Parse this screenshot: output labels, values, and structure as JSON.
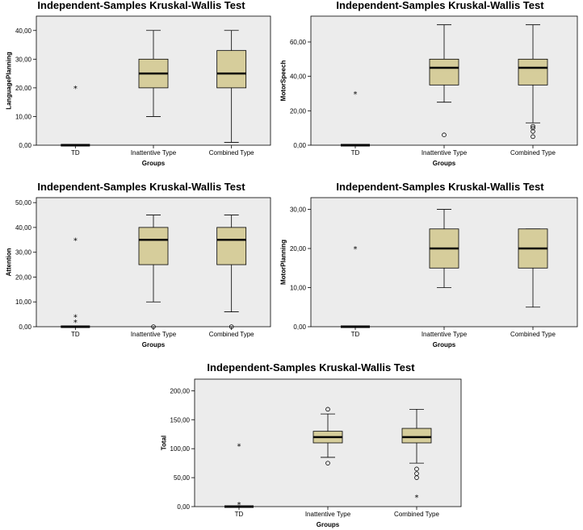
{
  "chart_data": [
    {
      "type": "boxplot",
      "title": "Independent-Samples Kruskal-Wallis Test",
      "xlabel": "Groups",
      "ylabel": "LanguagePlanning",
      "ylim": [
        0,
        45
      ],
      "yticks": [
        0,
        10,
        20,
        30,
        40
      ],
      "ytick_labels": [
        "0,00",
        "10,00",
        "20,00",
        "30,00",
        "40,00"
      ],
      "grid": false,
      "box_color": "#d6cd9b",
      "background": "#ececec",
      "categories": [
        "TD",
        "Inattentive Type",
        "Combined Type"
      ],
      "boxes": [
        {
          "min": 0,
          "q1": 0,
          "median": 0,
          "q3": 0,
          "max": 0,
          "outliers": [],
          "extremes": [
            20
          ]
        },
        {
          "min": 10,
          "q1": 20,
          "median": 25,
          "q3": 30,
          "max": 40,
          "outliers": [],
          "extremes": []
        },
        {
          "min": 1,
          "q1": 20,
          "median": 25,
          "q3": 33,
          "max": 40,
          "outliers": [],
          "extremes": []
        }
      ]
    },
    {
      "type": "boxplot",
      "title": "Independent-Samples Kruskal-Wallis Test",
      "xlabel": "Groups",
      "ylabel": "MotorSpeech",
      "ylim": [
        0,
        75
      ],
      "yticks": [
        0,
        20,
        40,
        60
      ],
      "ytick_labels": [
        "0,00",
        "20,00",
        "40,00",
        "60,00"
      ],
      "grid": false,
      "box_color": "#d6cd9b",
      "background": "#ececec",
      "categories": [
        "TD",
        "Inattentive Type",
        "Combined Type"
      ],
      "boxes": [
        {
          "min": 0,
          "q1": 0,
          "median": 0,
          "q3": 0,
          "max": 0,
          "outliers": [],
          "extremes": [
            30
          ]
        },
        {
          "min": 25,
          "q1": 35,
          "median": 45,
          "q3": 50,
          "max": 70,
          "outliers": [
            6
          ],
          "extremes": []
        },
        {
          "min": 13,
          "q1": 35,
          "median": 45,
          "q3": 50,
          "max": 70,
          "outliers": [
            11,
            10,
            8,
            5
          ],
          "extremes": []
        }
      ]
    },
    {
      "type": "boxplot",
      "title": "Independent-Samples Kruskal-Wallis Test",
      "xlabel": "Groups",
      "ylabel": "Attention",
      "ylim": [
        0,
        52
      ],
      "yticks": [
        0,
        10,
        20,
        30,
        40,
        50
      ],
      "ytick_labels": [
        "0,00",
        "10,00",
        "20,00",
        "30,00",
        "40,00",
        "50,00"
      ],
      "grid": false,
      "box_color": "#d6cd9b",
      "background": "#ececec",
      "categories": [
        "TD",
        "Inattentive Type",
        "Combined Type"
      ],
      "boxes": [
        {
          "min": 0,
          "q1": 0,
          "median": 0,
          "q3": 0,
          "max": 0,
          "outliers": [],
          "extremes": [
            35,
            4,
            2
          ]
        },
        {
          "min": 10,
          "q1": 25,
          "median": 35,
          "q3": 40,
          "max": 45,
          "outliers": [
            0
          ],
          "extremes": []
        },
        {
          "min": 6,
          "q1": 25,
          "median": 35,
          "q3": 40,
          "max": 45,
          "outliers": [
            0
          ],
          "extremes": []
        }
      ]
    },
    {
      "type": "boxplot",
      "title": "Independent-Samples Kruskal-Wallis Test",
      "xlabel": "Groups",
      "ylabel": "MotorPlanning",
      "ylim": [
        0,
        33
      ],
      "yticks": [
        0,
        10,
        20,
        30
      ],
      "ytick_labels": [
        "0,00",
        "10,00",
        "20,00",
        "30,00"
      ],
      "grid": false,
      "box_color": "#d6cd9b",
      "background": "#ececec",
      "categories": [
        "TD",
        "Inattentive Type",
        "Combined Type"
      ],
      "boxes": [
        {
          "min": 0,
          "q1": 0,
          "median": 0,
          "q3": 0,
          "max": 0,
          "outliers": [],
          "extremes": [
            20
          ]
        },
        {
          "min": 10,
          "q1": 15,
          "median": 20,
          "q3": 25,
          "max": 30,
          "outliers": [],
          "extremes": []
        },
        {
          "min": 5,
          "q1": 15,
          "median": 20,
          "q3": 25,
          "max": 25,
          "outliers": [],
          "extremes": []
        }
      ]
    },
    {
      "type": "boxplot",
      "title": "Independent-Samples Kruskal-Wallis Test",
      "xlabel": "Groups",
      "ylabel": "Total",
      "ylim": [
        0,
        220
      ],
      "yticks": [
        0,
        50,
        100,
        150,
        200
      ],
      "ytick_labels": [
        "0,00",
        "50,00",
        "100,00",
        "150,00",
        "200,00"
      ],
      "grid": false,
      "box_color": "#d6cd9b",
      "background": "#ececec",
      "categories": [
        "TD",
        "Inattentive Type",
        "Combined Type"
      ],
      "boxes": [
        {
          "min": 0,
          "q1": 0,
          "median": 0,
          "q3": 0,
          "max": 0,
          "outliers": [],
          "extremes": [
            105,
            4
          ]
        },
        {
          "min": 85,
          "q1": 110,
          "median": 120,
          "q3": 130,
          "max": 160,
          "outliers": [
            168,
            75
          ],
          "extremes": []
        },
        {
          "min": 75,
          "q1": 110,
          "median": 120,
          "q3": 135,
          "max": 168,
          "outliers": [
            65,
            57,
            50
          ],
          "extremes": [
            17
          ]
        }
      ]
    }
  ]
}
